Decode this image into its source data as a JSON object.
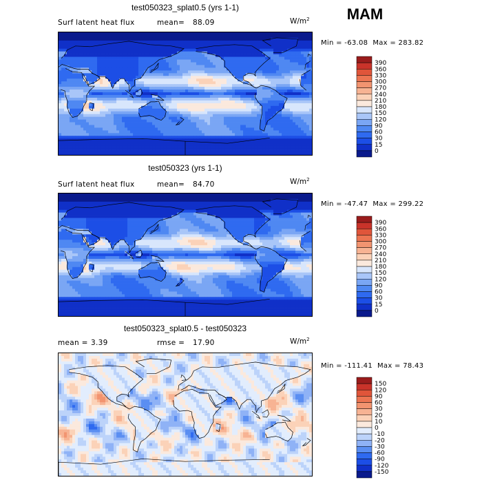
{
  "season": "MAM",
  "units": {
    "base": "W/m",
    "exp": "2"
  },
  "colors": {
    "abs_scale": [
      "#0a1a8c",
      "#1030c8",
      "#1c4ee6",
      "#2f6af0",
      "#4f88f2",
      "#7aa6f4",
      "#a9c6f8",
      "#d8e6fc",
      "#fbe9dd",
      "#fbd2b8",
      "#f7b393",
      "#f29470",
      "#ec7552",
      "#e0553a",
      "#c9332a",
      "#9a1c1c"
    ],
    "diff_scale": [
      "#0a1a8c",
      "#1030c8",
      "#1c4ee6",
      "#2f6af0",
      "#5a8ef2",
      "#8fb2f6",
      "#bcd3fa",
      "#e2edfd",
      "#fbe9dd",
      "#fbd2b8",
      "#f7b393",
      "#f29470",
      "#ec7552",
      "#e0553a",
      "#c9332a",
      "#9a1c1c"
    ]
  },
  "panels": [
    {
      "title": "test050323_splat0.5 (yrs 1-1)",
      "variable": "Surf latent heat flux",
      "mean_label": "mean=",
      "mean": "88.09",
      "min_label": "Min =",
      "min": "-63.08",
      "max_label": "Max =",
      "max": "283.82",
      "kind": "abs"
    },
    {
      "title": "test050323 (yrs 1-1)",
      "variable": "Surf latent heat flux",
      "mean_label": "mean=",
      "mean": "84.70",
      "min_label": "Min =",
      "min": "-47.47",
      "max_label": "Max =",
      "max": "299.22",
      "kind": "abs"
    },
    {
      "title": "test050323_splat0.5 - test050323",
      "variable": "",
      "mean_label": "mean =",
      "mean": "3.39",
      "rmse_label": "rmse =",
      "rmse": "17.90",
      "min_label": "Min =",
      "min": "-111.41",
      "max_label": "Max =",
      "max": "78.43",
      "kind": "diff"
    }
  ],
  "chart_data": [
    {
      "type": "heatmap",
      "title": "test050323_splat0.5 (yrs 1-1)",
      "variable": "Surf latent heat flux",
      "units": "W/m^2",
      "mean": 88.09,
      "min": -63.08,
      "max": 283.82,
      "colorbar_levels": [
        390,
        360,
        330,
        300,
        270,
        240,
        210,
        180,
        150,
        120,
        90,
        60,
        30,
        15,
        0
      ]
    },
    {
      "type": "heatmap",
      "title": "test050323 (yrs 1-1)",
      "variable": "Surf latent heat flux",
      "units": "W/m^2",
      "mean": 84.7,
      "min": -47.47,
      "max": 299.22,
      "colorbar_levels": [
        390,
        360,
        330,
        300,
        270,
        240,
        210,
        180,
        150,
        120,
        90,
        60,
        30,
        15,
        0
      ]
    },
    {
      "type": "heatmap",
      "title": "test050323_splat0.5 - test050323",
      "units": "W/m^2",
      "mean": 3.39,
      "rmse": 17.9,
      "min": -111.41,
      "max": 78.43,
      "colorbar_levels": [
        150,
        120,
        90,
        60,
        30,
        20,
        10,
        0,
        -10,
        -20,
        -30,
        -60,
        -90,
        -120,
        -150
      ]
    }
  ]
}
